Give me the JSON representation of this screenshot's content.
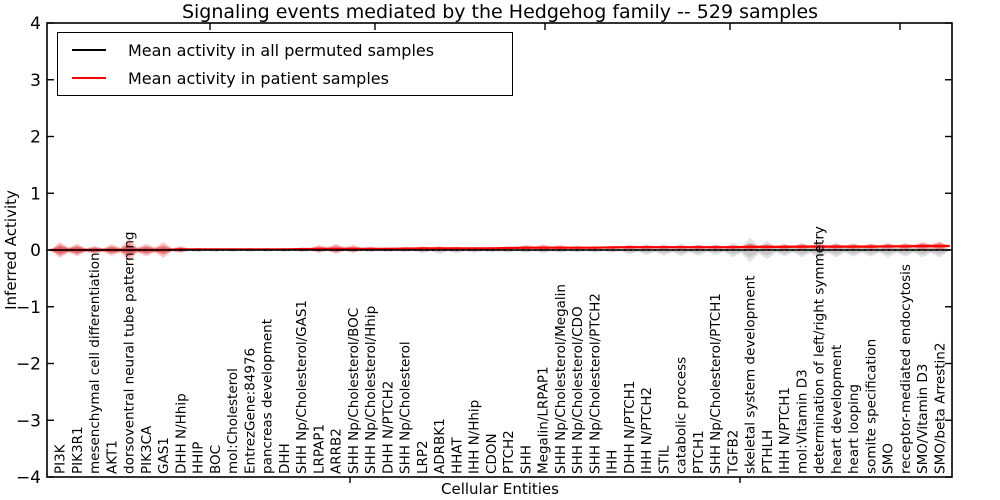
{
  "chart_data": {
    "type": "violin",
    "title": "Signaling events mediated by the Hedgehog family -- 529 samples",
    "xlabel": "Cellular Entities",
    "ylabel": "Inferred Activity",
    "ylim": [
      -4,
      4
    ],
    "grid": false,
    "legend_position": "upper left",
    "zero_line_style": "dotted",
    "ytick_values": [
      4,
      3,
      2,
      1,
      0,
      -1,
      -2,
      -3,
      -4
    ],
    "ytick_labels": [
      "4",
      "3",
      "2",
      "1",
      "0",
      "−1",
      "−2",
      "−3",
      "−4"
    ],
    "top_tick_x": [
      210,
      375,
      545,
      730,
      900
    ],
    "bottom_tick_x": [
      350,
      740
    ],
    "categories": [
      "PI3K",
      "PIK3R1",
      "mesenchymal cell differentiation",
      "AKT1",
      "dorsoventral neural tube patterning",
      "PIK3CA",
      "GAS1",
      "DHH N/Hhip",
      "HHIP",
      "BOC",
      "mol:Cholesterol",
      "EntrezGene:84976",
      "pancreas development",
      "DHH",
      "SHH Np/Cholesterol/GAS1",
      "LRPAP1",
      "ARRB2",
      "SHH Np/Cholesterol/BOC",
      "SHH Np/Cholesterol/Hhip",
      "DHH N/PTCH2",
      "SHH Np/Cholesterol",
      "LRP2",
      "ADRBK1",
      "HHAT",
      "IHH N/Hhip",
      "CDON",
      "PTCH2",
      "SHH",
      "Megalin/LRPAP1",
      "SHH Np/Cholesterol/Megalin",
      "SHH Np/Cholesterol/CDO",
      "SHH Np/Cholesterol/PTCH2",
      "IHH",
      "DHH N/PTCH1",
      "IHH N/PTCH2",
      "STIL",
      "catabolic process",
      "PTCH1",
      "SHH Np/Cholesterol/PTCH1",
      "TGFB2",
      "skeletal system development",
      "PTHLH",
      "IHH N/PTCH1",
      "mol:Vitamin D3",
      "determination of left/right symmetry",
      "heart development",
      "heart looping",
      "somite specification",
      "SMO",
      "receptor-mediated endocytosis",
      "SMO/Vitamin D3",
      "SMO/beta Arrestin2"
    ],
    "series": [
      {
        "name": "Mean activity in all permuted samples",
        "color": "#000000",
        "fill_outer": "rgba(0,0,0,0.11)",
        "fill_inner": "rgba(0,0,0,0.12)",
        "mean": [
          0,
          0,
          0,
          0,
          0,
          0,
          0,
          0,
          0,
          0,
          0,
          0,
          0,
          0,
          0,
          0,
          0,
          0,
          0,
          0,
          0,
          0,
          0,
          0,
          0,
          0,
          0,
          0,
          0,
          0,
          0,
          0,
          0,
          0,
          0,
          0,
          0,
          0,
          0,
          0,
          0,
          0,
          0,
          0,
          0,
          0,
          0,
          0,
          0,
          0,
          0,
          0
        ],
        "spread": [
          0.1,
          0.08,
          0.06,
          0.07,
          0.09,
          0.07,
          0.07,
          0.05,
          0.04,
          0.035,
          0.035,
          0.035,
          0.035,
          0.035,
          0.04,
          0.045,
          0.05,
          0.045,
          0.04,
          0.04,
          0.04,
          0.06,
          0.07,
          0.06,
          0.05,
          0.045,
          0.045,
          0.05,
          0.055,
          0.05,
          0.045,
          0.045,
          0.05,
          0.08,
          0.09,
          0.1,
          0.11,
          0.1,
          0.09,
          0.13,
          0.22,
          0.16,
          0.11,
          0.13,
          0.16,
          0.13,
          0.12,
          0.12,
          0.13,
          0.12,
          0.13,
          0.14
        ]
      },
      {
        "name": "Mean activity in patient samples",
        "color": "#ff0000",
        "fill_outer": "rgba(255,0,0,0.22)",
        "fill_inner": "rgba(230,0,0,0.30)",
        "mean": [
          0,
          0,
          0,
          0,
          0,
          0,
          0,
          0.01,
          0.01,
          0.01,
          0.01,
          0.01,
          0.01,
          0.01,
          0.015,
          0.02,
          0.02,
          0.02,
          0.02,
          0.02,
          0.025,
          0.03,
          0.03,
          0.03,
          0.03,
          0.03,
          0.035,
          0.04,
          0.04,
          0.04,
          0.04,
          0.04,
          0.045,
          0.05,
          0.05,
          0.05,
          0.05,
          0.05,
          0.05,
          0.05,
          0.055,
          0.055,
          0.055,
          0.06,
          0.06,
          0.06,
          0.06,
          0.06,
          0.065,
          0.065,
          0.07,
          0.07
        ],
        "spread": [
          0.14,
          0.11,
          0.07,
          0.1,
          0.2,
          0.11,
          0.14,
          0.06,
          0.03,
          0.02,
          0.02,
          0.02,
          0.02,
          0.025,
          0.03,
          0.07,
          0.09,
          0.07,
          0.04,
          0.03,
          0.03,
          0.03,
          0.03,
          0.025,
          0.02,
          0.02,
          0.03,
          0.05,
          0.06,
          0.05,
          0.035,
          0.03,
          0.03,
          0.04,
          0.04,
          0.035,
          0.035,
          0.04,
          0.04,
          0.04,
          0.06,
          0.05,
          0.045,
          0.05,
          0.06,
          0.05,
          0.05,
          0.05,
          0.05,
          0.055,
          0.07,
          0.08
        ]
      }
    ]
  }
}
